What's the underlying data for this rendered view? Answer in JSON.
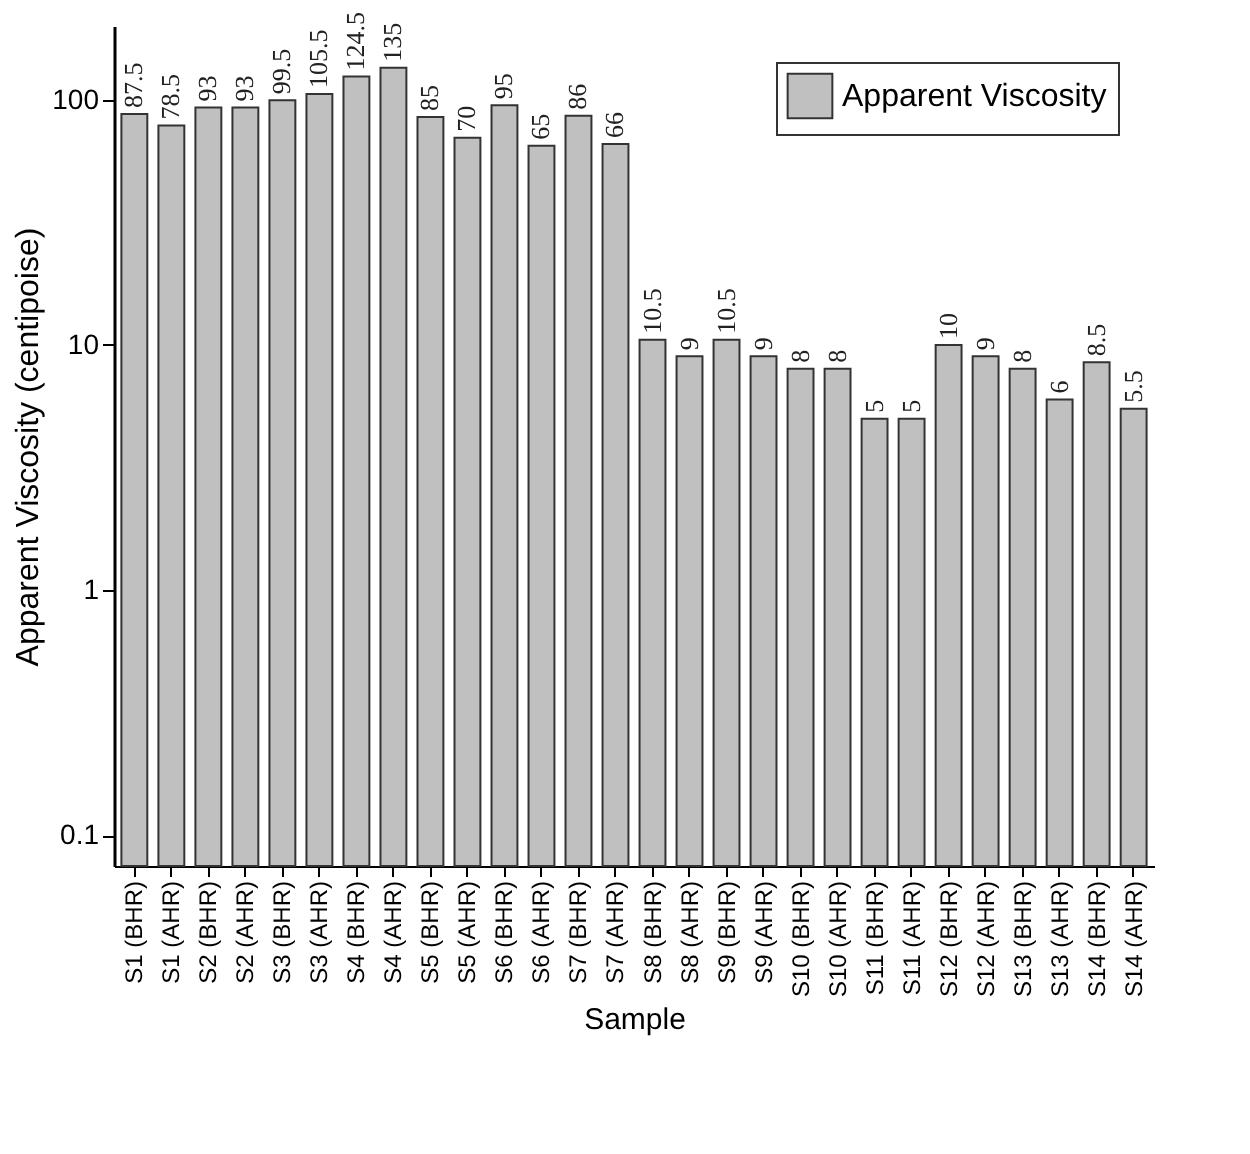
{
  "chart_data": {
    "type": "bar",
    "xlabel": "Sample",
    "ylabel": "Apparent Viscosity (centipoise)",
    "categories": [
      "S1 (BHR)",
      "S1 (AHR)",
      "S2 (BHR)",
      "S2 (AHR)",
      "S3 (BHR)",
      "S3 (AHR)",
      "S4 (BHR)",
      "S4 (AHR)",
      "S5 (BHR)",
      "S5 (AHR)",
      "S6 (BHR)",
      "S6 (AHR)",
      "S7 (BHR)",
      "S7 (AHR)",
      "S8 (BHR)",
      "S8 (AHR)",
      "S9 (BHR)",
      "S9 (AHR)",
      "S10 (BHR)",
      "S10 (AHR)",
      "S11 (BHR)",
      "S11 (AHR)",
      "S12 (BHR)",
      "S12 (AHR)",
      "S13 (BHR)",
      "S13 (AHR)",
      "S14 (BHR)",
      "S14 (AHR)"
    ],
    "series": [
      {
        "name": "Apparent Viscosity",
        "color": "#c0c0c0",
        "values": [
          87.5,
          78.5,
          93,
          93,
          99.5,
          105.5,
          124.5,
          135,
          85,
          70,
          95,
          65,
          86,
          66,
          10.5,
          9,
          10.5,
          9,
          8,
          8,
          5,
          5,
          10,
          9,
          8,
          6,
          8.5,
          5.5
        ]
      }
    ],
    "log": true,
    "ylim": [
      0.075,
      200
    ],
    "yticks": [
      0.1,
      1,
      10,
      100
    ],
    "grid": false,
    "legend": "top right",
    "data_labels": true
  }
}
